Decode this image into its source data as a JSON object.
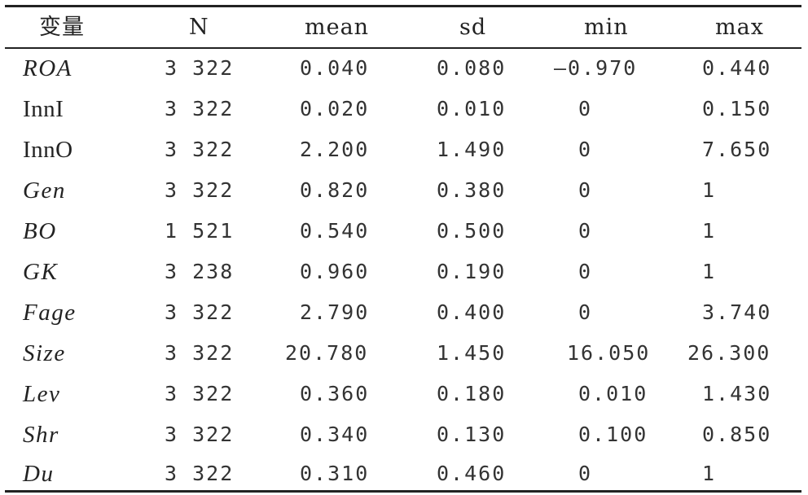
{
  "table": {
    "headers": {
      "var": "变量",
      "n": "N",
      "mean": "mean",
      "sd": "sd",
      "min": "min",
      "max": "max"
    },
    "rows": [
      {
        "var": "ROA",
        "n": "3 322",
        "mean": "0.040",
        "sd": "0.080",
        "min": "—0.970",
        "max": "0.440"
      },
      {
        "var": "InnI",
        "n": "3 322",
        "mean": "0.020",
        "sd": "0.010",
        "min": "0",
        "max": "0.150"
      },
      {
        "var": "InnO",
        "n": "3 322",
        "mean": "2.200",
        "sd": "1.490",
        "min": "0",
        "max": "7.650"
      },
      {
        "var": "Gen",
        "n": "3 322",
        "mean": "0.820",
        "sd": "0.380",
        "min": "0",
        "max": "1"
      },
      {
        "var": "BO",
        "n": "1 521",
        "mean": "0.540",
        "sd": "0.500",
        "min": "0",
        "max": "1"
      },
      {
        "var": "GK",
        "n": "3 238",
        "mean": "0.960",
        "sd": "0.190",
        "min": "0",
        "max": "1"
      },
      {
        "var": "Fage",
        "n": "3 322",
        "mean": "2.790",
        "sd": "0.400",
        "min": "0",
        "max": "3.740"
      },
      {
        "var": "Size",
        "n": "3 322",
        "mean": "20.780",
        "sd": "1.450",
        "min": "16.050",
        "max": "26.300"
      },
      {
        "var": "Lev",
        "n": "3 322",
        "mean": "0.360",
        "sd": "0.180",
        "min": "0.010",
        "max": "1.430"
      },
      {
        "var": "Shr",
        "n": "3 322",
        "mean": "0.340",
        "sd": "0.130",
        "min": "0.100",
        "max": "0.850"
      },
      {
        "var": "Du",
        "n": "3 322",
        "mean": "0.310",
        "sd": "0.460",
        "min": "0",
        "max": "1"
      }
    ]
  }
}
